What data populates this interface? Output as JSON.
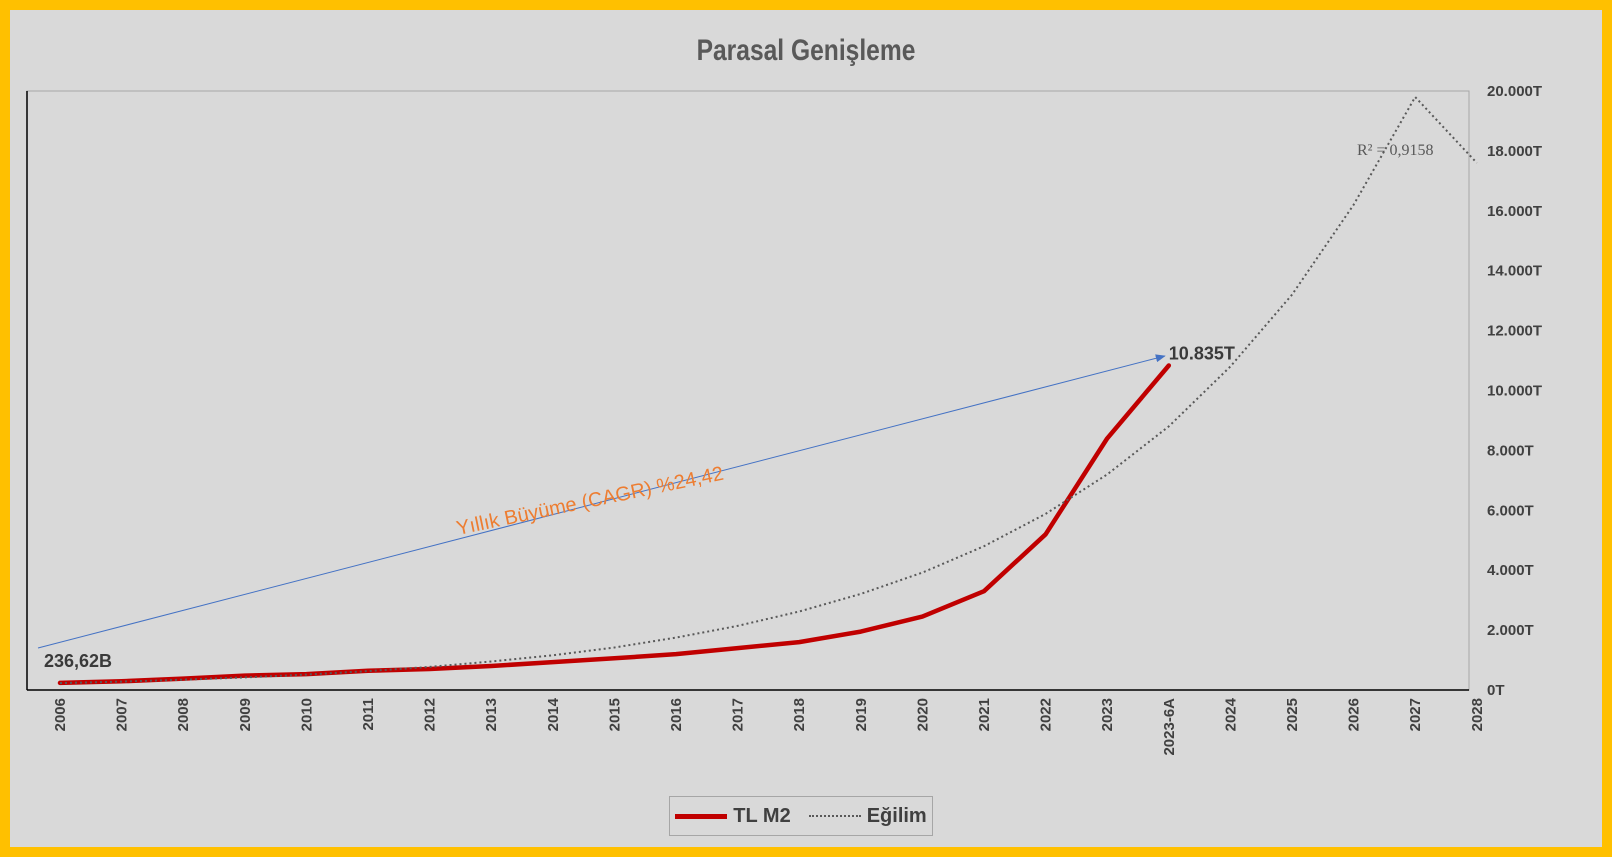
{
  "chart_data": {
    "type": "line",
    "title": "Parasal Genişleme",
    "categories": [
      "2006",
      "2007",
      "2008",
      "2009",
      "2010",
      "2011",
      "2012",
      "2013",
      "2014",
      "2015",
      "2016",
      "2017",
      "2018",
      "2019",
      "2020",
      "2021",
      "2022",
      "2023",
      "2023-6A",
      "2024",
      "2025",
      "2026",
      "2027",
      "2028"
    ],
    "series": [
      {
        "name": "TL M2",
        "color": "#C00000",
        "style": "solid",
        "values": [
          236.62,
          290,
          380,
          480,
          530,
          640,
          700,
          800,
          930,
          1060,
          1200,
          1400,
          1600,
          1950,
          2450,
          3300,
          5200,
          8400,
          10835,
          null,
          null,
          null,
          null,
          null
        ]
      },
      {
        "name": "Eğilim",
        "color": "#595959",
        "style": "dotted",
        "values": [
          230,
          280,
          345,
          420,
          515,
          630,
          770,
          950,
          1160,
          1420,
          1750,
          2140,
          2620,
          3210,
          3920,
          4800,
          5880,
          7200,
          8800,
          10800,
          13200,
          16200,
          19800,
          17600
        ]
      }
    ],
    "y_axis": {
      "position": "right",
      "ylim": [
        0,
        20000
      ],
      "unit": "billion TL",
      "ticks": [
        "0T",
        "2.000T",
        "4.000T",
        "6.000T",
        "8.000T",
        "10.000T",
        "12.000T",
        "14.000T",
        "16.000T",
        "18.000T",
        "20.000T"
      ]
    },
    "data_labels": {
      "start": "236,62B",
      "end": "10.835T"
    },
    "annotations": {
      "r_squared": "R² = 0,9158",
      "cagr": "Yıllık Büyüme (CAGR) %24,42"
    },
    "legend": {
      "position": "bottom",
      "entries": [
        "TL M2",
        "Eğilim"
      ]
    },
    "grid": false,
    "colors": {
      "frame": "#FFC000",
      "background": "#D9D9D9",
      "arrow": "#4472C4",
      "cagr_text": "#ED7D31"
    }
  }
}
